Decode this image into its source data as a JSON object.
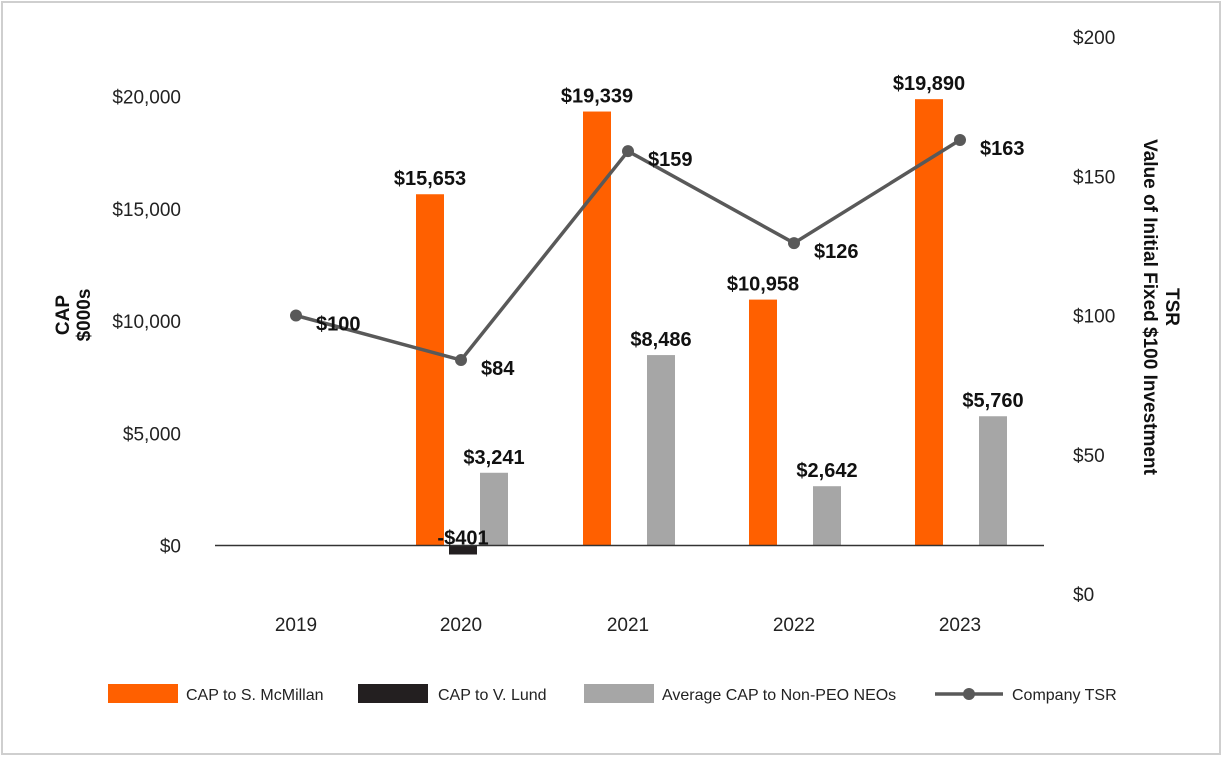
{
  "chart_data": {
    "type": "bar",
    "categories": [
      "2019",
      "2020",
      "2021",
      "2022",
      "2023"
    ],
    "series": [
      {
        "name": "CAP to S. McMillan",
        "kind": "bar",
        "axis": "left",
        "color": "#ff6000",
        "values": [
          null,
          15653,
          19339,
          10958,
          19890
        ],
        "labels": [
          "",
          "$15,653",
          "$19,339",
          "$10,958",
          "$19,890"
        ]
      },
      {
        "name": "CAP to V. Lund",
        "kind": "bar",
        "axis": "left",
        "color": "#231f20",
        "values": [
          null,
          -401,
          null,
          null,
          null
        ],
        "labels": [
          "",
          "-$401",
          "",
          "",
          ""
        ]
      },
      {
        "name": "Average CAP to Non-PEO NEOs",
        "kind": "bar",
        "axis": "left",
        "color": "#a6a6a6",
        "values": [
          null,
          3241,
          8486,
          2642,
          5760
        ],
        "labels": [
          "",
          "$3,241",
          "$8,486",
          "$2,642",
          "$5,760"
        ]
      },
      {
        "name": "Company TSR",
        "kind": "line",
        "axis": "right",
        "color": "#595959",
        "values": [
          100,
          84,
          159,
          126,
          163
        ],
        "labels": [
          "$100",
          "$84",
          "$159",
          "$126",
          "$163"
        ]
      }
    ],
    "y_left": {
      "title_lines": [
        "CAP",
        "$000s"
      ],
      "ticks": [
        0,
        5000,
        10000,
        15000,
        20000
      ],
      "tick_labels": [
        "$0",
        "$5,000",
        "$10,000",
        "$15,000",
        "$20,000"
      ],
      "range": [
        -2200,
        22700
      ]
    },
    "y_right": {
      "title_lines": [
        "TSR",
        "Value of Initial Fixed $100 Investment"
      ],
      "ticks": [
        0,
        50,
        100,
        150,
        200
      ],
      "tick_labels": [
        "$0",
        "$50",
        "$100",
        "$150",
        "$200"
      ],
      "range": [
        0,
        200
      ]
    },
    "grid": false,
    "legend_position": "bottom"
  }
}
